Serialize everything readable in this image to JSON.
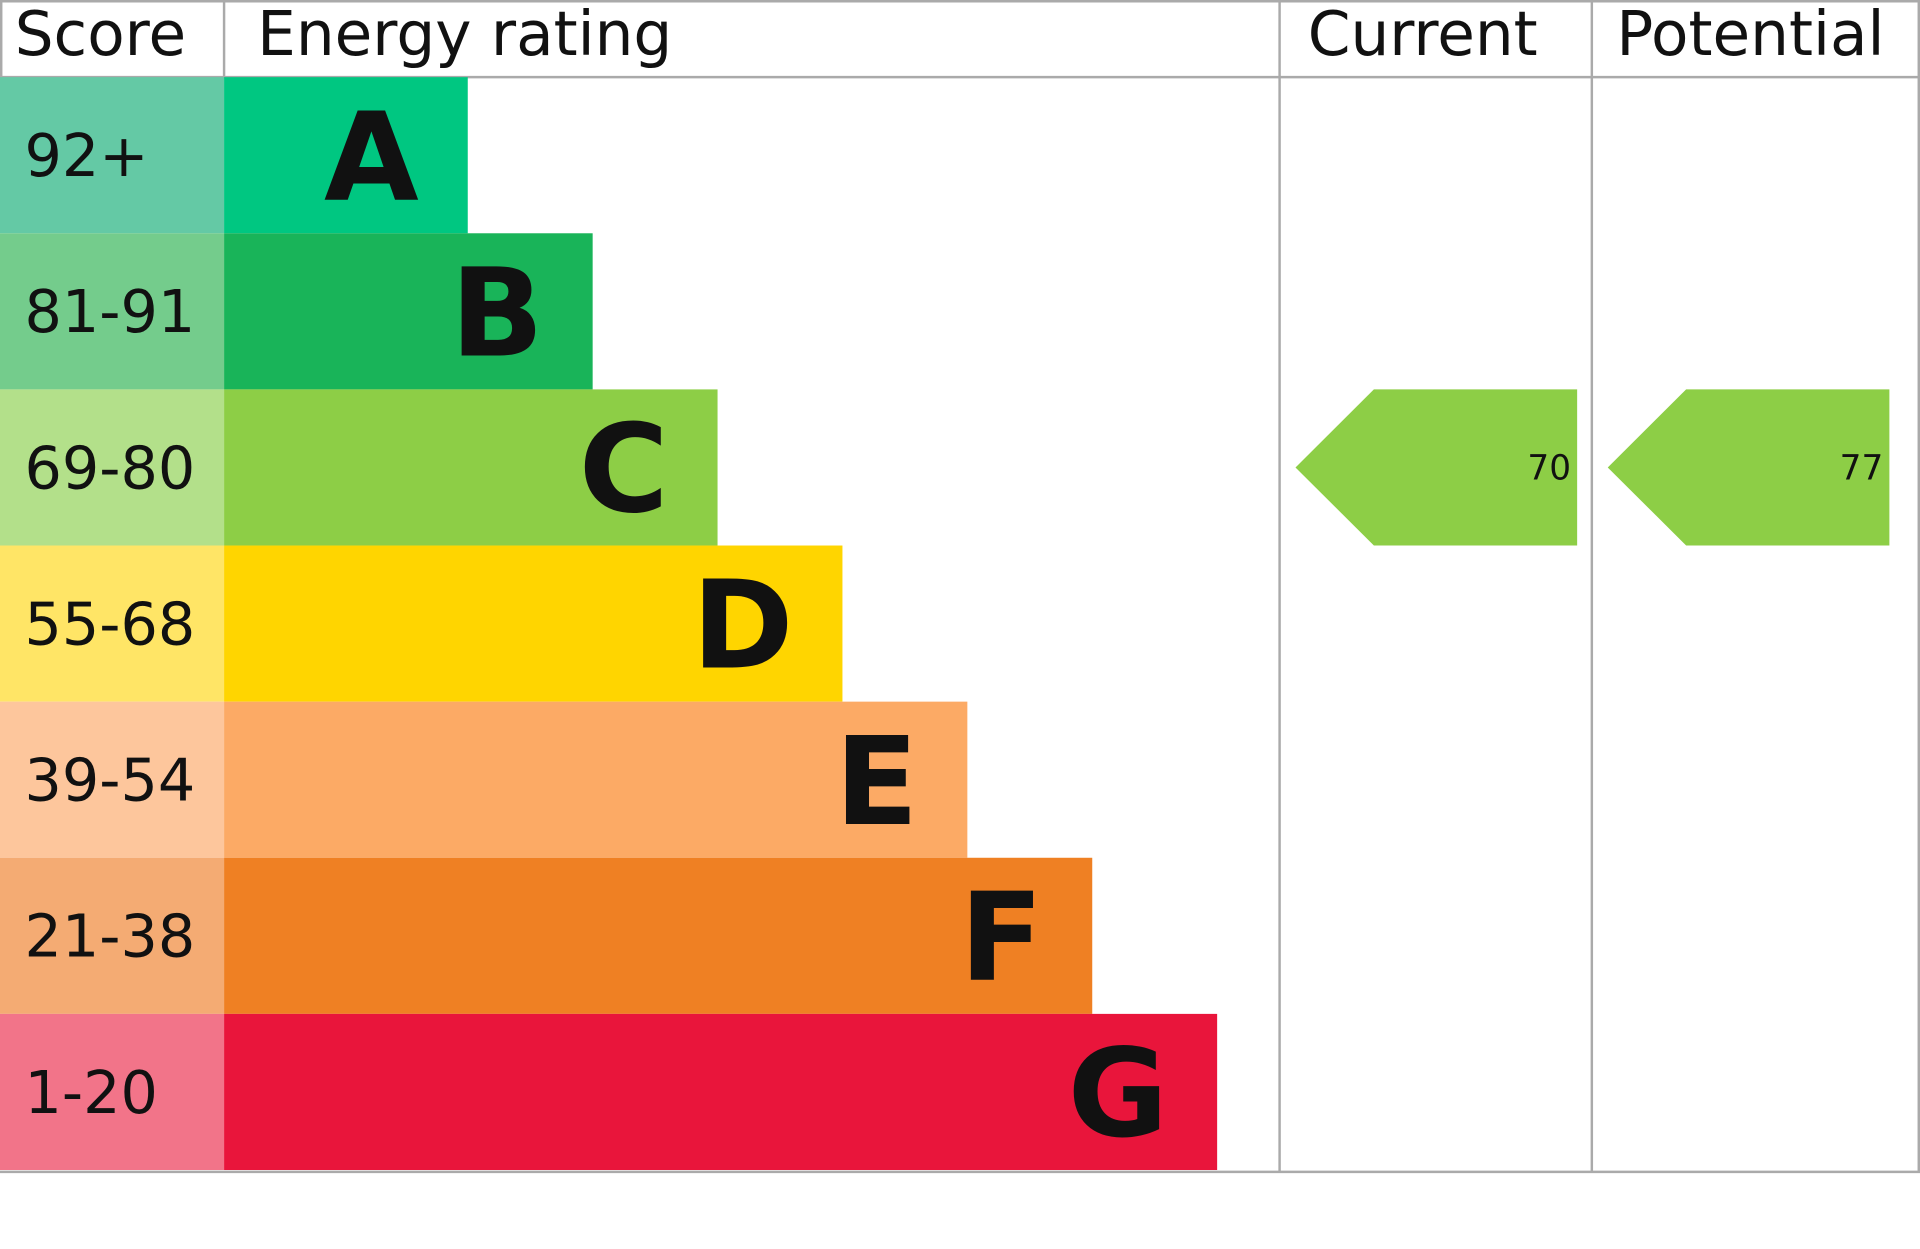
{
  "chart_data": {
    "type": "epc",
    "headers": {
      "score": "Score",
      "rating": "Energy rating",
      "current": "Current",
      "potential": "Potential"
    },
    "bands": [
      {
        "range": "92+",
        "letter": "A",
        "color": "#00c781",
        "score_color": "#64c9a5"
      },
      {
        "range": "81-91",
        "letter": "B",
        "color": "#19b459",
        "score_color": "#74cc8c"
      },
      {
        "range": "69-80",
        "letter": "C",
        "color": "#8dce46",
        "score_color": "#b3e08a"
      },
      {
        "range": "55-68",
        "letter": "D",
        "color": "#ffd500",
        "score_color": "#ffe566"
      },
      {
        "range": "39-54",
        "letter": "E",
        "color": "#fcaa65",
        "score_color": "#fdc69c"
      },
      {
        "range": "21-38",
        "letter": "F",
        "color": "#ef8023",
        "score_color": "#f4ab73"
      },
      {
        "range": "1-20",
        "letter": "G",
        "color": "#e9153b",
        "score_color": "#f27489"
      }
    ],
    "current": 70,
    "potential": 77
  }
}
